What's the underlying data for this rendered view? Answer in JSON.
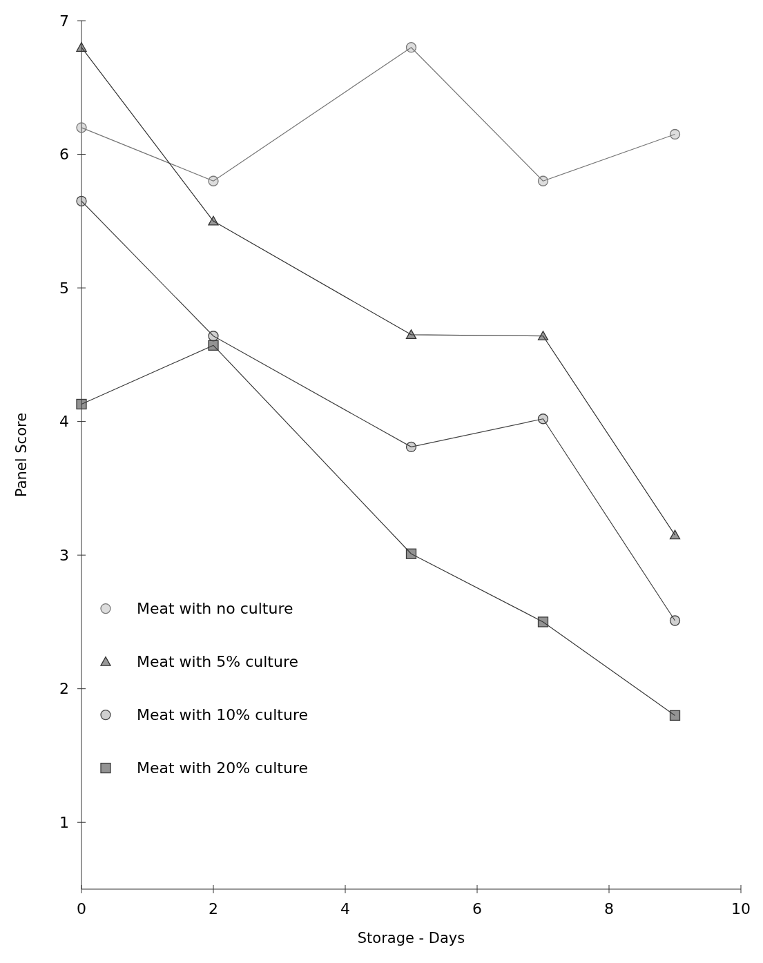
{
  "chart_data": {
    "type": "line",
    "xlabel": "Storage - Days",
    "ylabel": "Panel Score",
    "x": [
      0,
      2,
      5,
      7,
      9
    ],
    "xlim": [
      0,
      10
    ],
    "xticks": [
      0,
      2,
      4,
      6,
      8,
      10
    ],
    "ylim": [
      0.5,
      7
    ],
    "yticks": [
      1,
      2,
      3,
      4,
      5,
      6,
      7
    ],
    "grid": false,
    "legend": "left",
    "line_style": "solid",
    "series": [
      {
        "name": "Meat with no culture",
        "color": "#777777",
        "marker": "circle",
        "values": [
          6.2,
          5.8,
          6.8,
          5.8,
          6.15
        ]
      },
      {
        "name": "Meat with 5% culture",
        "color": "#333333",
        "marker": "triangle",
        "values": [
          6.8,
          5.5,
          4.65,
          4.64,
          3.15
        ]
      },
      {
        "name": "Meat with 10% culture",
        "color": "#444444",
        "marker": "circle",
        "values": [
          5.65,
          4.64,
          3.81,
          4.02,
          2.51
        ]
      },
      {
        "name": "Meat with 20% culture",
        "color": "#3a3a3a",
        "marker": "square",
        "values": [
          4.13,
          4.57,
          3.01,
          2.5,
          1.8
        ]
      }
    ]
  }
}
